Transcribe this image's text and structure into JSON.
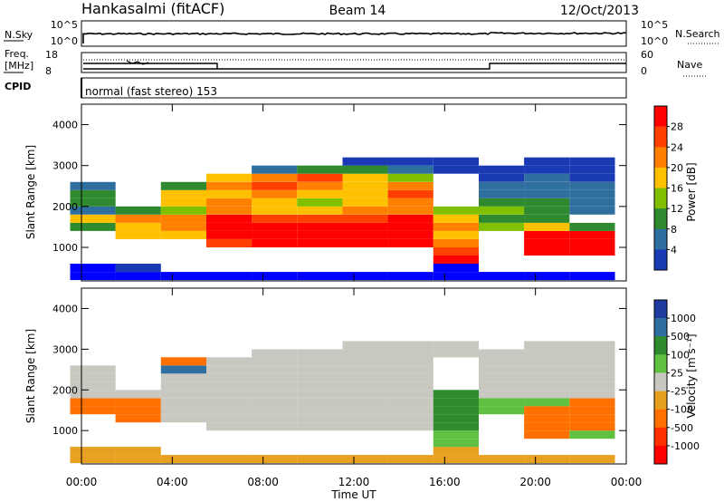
{
  "header": {
    "station": "Hankasalmi (fitACF)",
    "beam": "Beam 14",
    "date": "12/Oct/2013"
  },
  "strip_panels": {
    "nsky": {
      "label": "N.Sky",
      "left_ticks": [
        "10^5",
        "10^0"
      ],
      "right_ticks": [
        "10^5",
        "10^0"
      ],
      "right_label": "N.Search",
      "right_legend_line": "dotted"
    },
    "freq": {
      "label_line1": "Freq.",
      "label_line2": "[MHz]",
      "left_ticks": [
        "18",
        "8"
      ],
      "right_ticks": [
        "60",
        "0"
      ],
      "right_label": "Nave",
      "right_legend_line": "dotted"
    },
    "cpid": {
      "label": "CPID",
      "mode_text": "normal (fast stereo) 153"
    }
  },
  "power_panel": {
    "ylabel": "Slant Range [km]",
    "yticks": [
      "4000",
      "3000",
      "2000",
      "1000"
    ],
    "colorbar": {
      "label": "Power [dB]",
      "ticks": [
        "28",
        "24",
        "20",
        "16",
        "12",
        "8",
        "4"
      ],
      "colors": [
        "#ff0000",
        "#ff4000",
        "#ff8000",
        "#ffc000",
        "#80c000",
        "#2f8a2f",
        "#2f6fa0",
        "#1a3ab4",
        "#0000ff"
      ]
    }
  },
  "velocity_panel": {
    "ylabel": "Slant Range [km]",
    "yticks": [
      "4000",
      "3000",
      "2000",
      "1000"
    ],
    "colorbar": {
      "label": "Velocity [m s⁻¹]",
      "ticks": [
        "1000",
        "500",
        "100",
        "25",
        "-25",
        "-100",
        "-500",
        "-1000"
      ],
      "colors": [
        "#1e3ca0",
        "#2f6f9f",
        "#2e8b2e",
        "#60c040",
        "#c8c8c0",
        "#e8a020",
        "#ff7000",
        "#ff3000",
        "#ff0000"
      ]
    }
  },
  "xaxis": {
    "label": "Time UT",
    "ticks": [
      "00:00",
      "04:00",
      "08:00",
      "12:00",
      "16:00",
      "20:00",
      "00:00"
    ]
  },
  "chart_data": [
    {
      "type": "heatmap",
      "title": "Power",
      "x_range_hours": [
        0,
        24
      ],
      "y_range_km": [
        180,
        4500
      ],
      "z_label": "Power [dB]",
      "z_range": [
        0,
        30
      ],
      "ranges_km": [
        300,
        500,
        700,
        900,
        1100,
        1300,
        1500,
        1700,
        1900,
        2100,
        2300,
        2500,
        2700,
        2900,
        3100
      ],
      "times_h": [
        0.5,
        2.5,
        4.5,
        6.5,
        8.5,
        10.5,
        12.5,
        14.5,
        16.5,
        18.5,
        20.5,
        22.5
      ],
      "z": [
        [
          4,
          4,
          4,
          4,
          4,
          4,
          4,
          4,
          4,
          4,
          4,
          4
        ],
        [
          4,
          6,
          0,
          0,
          0,
          0,
          0,
          0,
          4,
          0,
          0,
          0
        ],
        [
          0,
          0,
          0,
          0,
          0,
          0,
          0,
          0,
          26,
          0,
          0,
          0
        ],
        [
          0,
          0,
          0,
          0,
          0,
          0,
          0,
          0,
          24,
          0,
          28,
          28
        ],
        [
          0,
          0,
          0,
          22,
          28,
          28,
          30,
          28,
          20,
          0,
          28,
          28
        ],
        [
          0,
          16,
          14,
          28,
          28,
          28,
          28,
          28,
          16,
          0,
          28,
          26
        ],
        [
          10,
          14,
          20,
          28,
          28,
          26,
          28,
          28,
          18,
          12,
          16,
          10
        ],
        [
          14,
          18,
          18,
          26,
          24,
          22,
          24,
          26,
          14,
          10,
          10,
          0
        ],
        [
          8,
          10,
          12,
          20,
          16,
          14,
          18,
          20,
          12,
          12,
          10,
          8
        ],
        [
          10,
          0,
          14,
          18,
          16,
          12,
          14,
          20,
          0,
          10,
          10,
          8
        ],
        [
          10,
          0,
          16,
          16,
          20,
          14,
          14,
          22,
          0,
          8,
          8,
          8
        ],
        [
          8,
          0,
          10,
          20,
          22,
          18,
          16,
          20,
          0,
          8,
          8,
          8
        ],
        [
          0,
          0,
          0,
          14,
          20,
          22,
          16,
          12,
          0,
          6,
          8,
          6
        ],
        [
          0,
          0,
          0,
          0,
          8,
          10,
          10,
          8,
          6,
          6,
          6,
          6
        ],
        [
          0,
          0,
          0,
          0,
          0,
          0,
          6,
          6,
          6,
          0,
          6,
          6
        ]
      ]
    },
    {
      "type": "heatmap",
      "title": "Velocity",
      "x_range_hours": [
        0,
        24
      ],
      "y_range_km": [
        180,
        4500
      ],
      "z_label": "Velocity [m s⁻¹]",
      "z_range": [
        -1000,
        1000
      ],
      "ranges_km": [
        300,
        500,
        700,
        900,
        1100,
        1300,
        1500,
        1700,
        1900,
        2100,
        2300,
        2500,
        2700,
        2900,
        3100
      ],
      "times_h": [
        0.5,
        2.5,
        4.5,
        6.5,
        8.5,
        10.5,
        12.5,
        14.5,
        16.5,
        18.5,
        20.5,
        22.5
      ],
      "z": [
        [
          -50,
          -50,
          -50,
          -50,
          -50,
          -50,
          -50,
          -50,
          -50,
          -50,
          -50,
          -50
        ],
        [
          -80,
          -60,
          0,
          0,
          0,
          0,
          0,
          0,
          -40,
          0,
          0,
          0
        ],
        [
          0,
          0,
          0,
          0,
          0,
          0,
          0,
          0,
          60,
          0,
          0,
          0
        ],
        [
          0,
          0,
          0,
          0,
          0,
          0,
          0,
          0,
          80,
          0,
          -200,
          60
        ],
        [
          0,
          0,
          0,
          0,
          10,
          0,
          0,
          0,
          120,
          0,
          -300,
          -200
        ],
        [
          0,
          -300,
          0,
          0,
          0,
          0,
          0,
          0,
          100,
          0,
          -300,
          -300
        ],
        [
          -400,
          -400,
          0,
          0,
          0,
          0,
          0,
          0,
          200,
          60,
          -150,
          -300
        ],
        [
          -300,
          -300,
          0,
          0,
          0,
          0,
          0,
          0,
          150,
          60,
          80,
          -100
        ],
        [
          0,
          0,
          0,
          0,
          0,
          0,
          0,
          0,
          100,
          0,
          0,
          0
        ],
        [
          0,
          0,
          0,
          0,
          0,
          0,
          0,
          0,
          0,
          0,
          0,
          0
        ],
        [
          0,
          0,
          0,
          0,
          0,
          0,
          0,
          0,
          0,
          0,
          0,
          0
        ],
        [
          0,
          0,
          300,
          0,
          0,
          0,
          0,
          0,
          0,
          0,
          0,
          0
        ],
        [
          0,
          0,
          -300,
          0,
          0,
          0,
          0,
          0,
          0,
          0,
          0,
          0
        ],
        [
          0,
          0,
          0,
          0,
          0,
          0,
          0,
          0,
          0,
          0,
          0,
          0
        ],
        [
          0,
          0,
          0,
          0,
          0,
          0,
          0,
          0,
          0,
          0,
          0,
          0
        ]
      ]
    }
  ]
}
